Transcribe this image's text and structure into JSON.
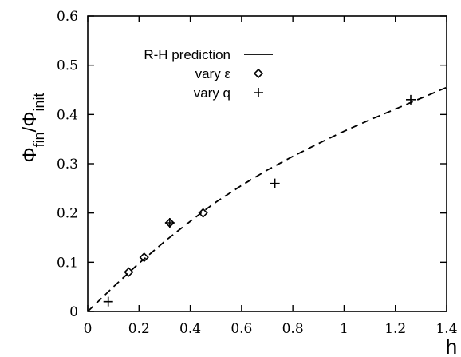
{
  "chart_data": {
    "type": "scatter",
    "xlabel": "h",
    "ylabel": {
      "parts": [
        {
          "text": "Φ",
          "sub": false
        },
        {
          "text": "fin",
          "sub": true
        },
        {
          "text": "/Φ",
          "sub": false
        },
        {
          "text": "init",
          "sub": true
        }
      ]
    },
    "xlim": [
      0,
      1.4
    ],
    "ylim": [
      0,
      0.6
    ],
    "xticks": [
      0,
      0.2,
      0.4,
      0.6,
      0.8,
      1,
      1.2,
      1.4
    ],
    "yticks": [
      0,
      0.1,
      0.2,
      0.3,
      0.4,
      0.5,
      0.6
    ],
    "xtick_labels": [
      "0",
      "0.2",
      "0.4",
      "0.6",
      "0.8",
      "1",
      "1.2",
      "1.4"
    ],
    "ytick_labels": [
      "0",
      "0.1",
      "0.2",
      "0.3",
      "0.4",
      "0.5",
      "0.6"
    ],
    "grid": false,
    "legend_position": "top-left",
    "series": [
      {
        "name": "R-H prediction",
        "kind": "line",
        "style": "dashed",
        "x": [
          0,
          0.05,
          0.1,
          0.15,
          0.2,
          0.25,
          0.3,
          0.35,
          0.4,
          0.45,
          0.5,
          0.6,
          0.7,
          0.8,
          0.9,
          1.0,
          1.1,
          1.2,
          1.3,
          1.4
        ],
        "y": [
          0,
          0.025,
          0.05,
          0.074,
          0.098,
          0.12,
          0.142,
          0.163,
          0.183,
          0.203,
          0.222,
          0.256,
          0.287,
          0.315,
          0.341,
          0.366,
          0.389,
          0.411,
          0.433,
          0.455
        ]
      },
      {
        "name": "vary ε",
        "kind": "scatter",
        "marker": "diamond",
        "x": [
          0.16,
          0.22,
          0.32,
          0.45
        ],
        "y": [
          0.08,
          0.11,
          0.18,
          0.2
        ]
      },
      {
        "name": "vary q",
        "kind": "scatter",
        "marker": "plus",
        "x": [
          0.08,
          0.32,
          0.73,
          1.26
        ],
        "y": [
          0.02,
          0.18,
          0.26,
          0.43
        ]
      }
    ]
  }
}
